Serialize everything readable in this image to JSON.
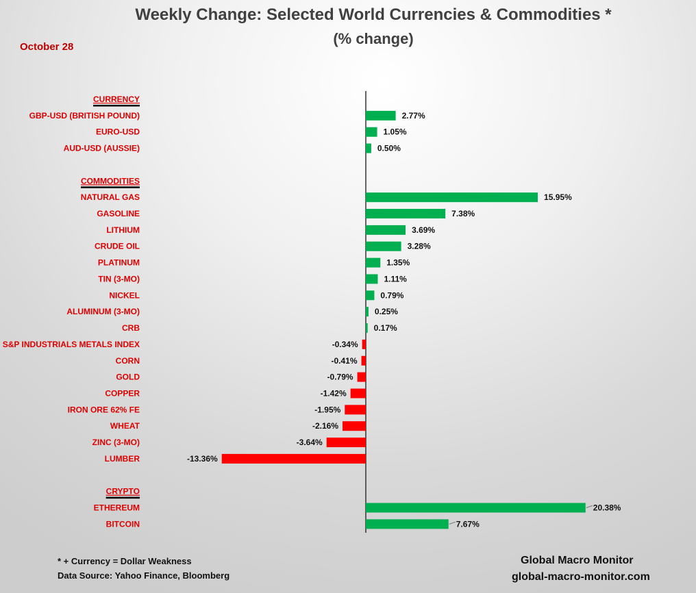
{
  "title": "Weekly Change: Selected World Currencies & Commodities *",
  "subtitle": "(% change)",
  "date": "October 28",
  "footnote": "* + Currency = Dollar Weakness",
  "source": "Data Source:  Yahoo Finance, Bloomberg",
  "brand": "Global Macro Monitor",
  "website": "global-macro-monitor.com",
  "colors": {
    "positive": "#00b050",
    "negative": "#ff0000",
    "label": "#e00000"
  },
  "chart_data": {
    "type": "bar",
    "orientation": "horizontal",
    "title": "Weekly Change: Selected World Currencies & Commodities *",
    "xlabel": "% change",
    "xlim": [
      -14,
      21
    ],
    "rows": [
      {
        "section": "CURRENCY"
      },
      {
        "label": "GBP-USD (BRITISH POUND)",
        "value": 2.77,
        "text": "2.77%"
      },
      {
        "label": "EURO-USD",
        "value": 1.05,
        "text": "1.05%"
      },
      {
        "label": "AUD-USD (AUSSIE)",
        "value": 0.5,
        "text": "0.50%"
      },
      {
        "blank": true
      },
      {
        "section": "COMMODITIES"
      },
      {
        "label": "NATURAL GAS",
        "value": 15.95,
        "text": "15.95%"
      },
      {
        "label": "GASOLINE",
        "value": 7.38,
        "text": "7.38%"
      },
      {
        "label": "LITHIUM",
        "value": 3.69,
        "text": "3.69%"
      },
      {
        "label": "CRUDE OIL",
        "value": 3.28,
        "text": "3.28%"
      },
      {
        "label": "PLATINUM",
        "value": 1.35,
        "text": "1.35%"
      },
      {
        "label": "TIN (3-MO)",
        "value": 1.11,
        "text": "1.11%"
      },
      {
        "label": "NICKEL",
        "value": 0.79,
        "text": "0.79%"
      },
      {
        "label": "ALUMINUM (3-MO)",
        "value": 0.25,
        "text": "0.25%"
      },
      {
        "label": "CRB",
        "value": 0.17,
        "text": "0.17%"
      },
      {
        "label": "S&P INDUSTRIALS METALS INDEX",
        "value": -0.34,
        "text": "-0.34%"
      },
      {
        "label": "CORN",
        "value": -0.41,
        "text": "-0.41%"
      },
      {
        "label": "GOLD",
        "value": -0.79,
        "text": "-0.79%"
      },
      {
        "label": "COPPER",
        "value": -1.42,
        "text": "-1.42%"
      },
      {
        "label": "IRON ORE 62% FE",
        "value": -1.95,
        "text": "-1.95%"
      },
      {
        "label": "WHEAT",
        "value": -2.16,
        "text": "-2.16%"
      },
      {
        "label": "ZINC (3-MO)",
        "value": -3.64,
        "text": "-3.64%"
      },
      {
        "label": "LUMBER",
        "value": -13.36,
        "text": "-13.36%"
      },
      {
        "blank": true
      },
      {
        "section": "CRYPTO"
      },
      {
        "label": "ETHEREUM",
        "value": 20.38,
        "text": "20.38%"
      },
      {
        "label": "BITCOIN",
        "value": 7.67,
        "text": "7.67%"
      }
    ]
  }
}
